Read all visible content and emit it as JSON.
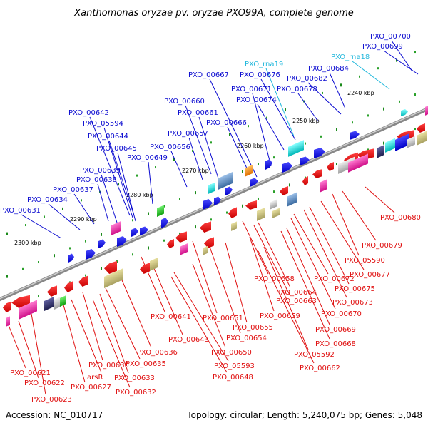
{
  "title": "Xanthomonas oryzae pv. oryzae PXO99A, complete genome",
  "footer": {
    "accession": "Accession: NC_010717",
    "summary": "Topology: circular; Length: 5,240,075 bp; Genes: 5,048"
  },
  "ticks": [
    "2240 kbp",
    "2250 kbp",
    "2260 kbp",
    "2270 kbp",
    "2280 kbp",
    "2290 kbp",
    "2300 kbp"
  ],
  "top_labels": [
    {
      "text": "PXO_00700",
      "color": "blue"
    },
    {
      "text": "PXO_00699",
      "color": "blue"
    },
    {
      "text": "PXO_rna18",
      "color": "cyan"
    },
    {
      "text": "PXO_rna19",
      "color": "cyan"
    },
    {
      "text": "PXO_00684",
      "color": "blue"
    },
    {
      "text": "PXO_00667",
      "color": "blue"
    },
    {
      "text": "PXO_00676",
      "color": "blue"
    },
    {
      "text": "PXO_00682",
      "color": "blue"
    },
    {
      "text": "PXO_00671",
      "color": "blue"
    },
    {
      "text": "PXO_00678",
      "color": "blue"
    },
    {
      "text": "PXO_00674",
      "color": "blue"
    },
    {
      "text": "PXO_00660",
      "color": "blue"
    },
    {
      "text": "PXO_00661",
      "color": "blue"
    },
    {
      "text": "PXO_00642",
      "color": "blue"
    },
    {
      "text": "PXO_00666",
      "color": "blue"
    },
    {
      "text": "PXO_05594",
      "color": "blue"
    },
    {
      "text": "PXO_00657",
      "color": "blue"
    },
    {
      "text": "PXO_00644",
      "color": "blue"
    },
    {
      "text": "PXO_00656",
      "color": "blue"
    },
    {
      "text": "PXO_00645",
      "color": "blue"
    },
    {
      "text": "PXO_00649",
      "color": "blue"
    },
    {
      "text": "PXO_00639",
      "color": "blue"
    },
    {
      "text": "PXO_00638",
      "color": "blue"
    },
    {
      "text": "PXO_00637",
      "color": "blue"
    },
    {
      "text": "PXO_00634",
      "color": "blue"
    },
    {
      "text": "PXO_00631",
      "color": "blue"
    }
  ],
  "bottom_labels": [
    "PXO_00680",
    "PXO_00679",
    "PXO_05590",
    "PXO_00677",
    "PXO_00675",
    "PXO_00673",
    "PXO_00672",
    "PXO_00670",
    "PXO_00658",
    "PXO_00664",
    "PXO_00663",
    "PXO_00669",
    "PXO_00668",
    "PXO_00659",
    "PXO_00651",
    "PXO_00655",
    "PXO_00654",
    "PXO_05592",
    "PXO_00662",
    "PXO_00641",
    "PXO_00643",
    "PXO_00650",
    "PXO_00636",
    "PXO_05593",
    "PXO_00648",
    "PXO_00635",
    "PXO_00630",
    "PXO_00633",
    "PXO_00621",
    "arsR",
    "PXO_00622",
    "PXO_00627",
    "PXO_00632",
    "PXO_00623"
  ]
}
